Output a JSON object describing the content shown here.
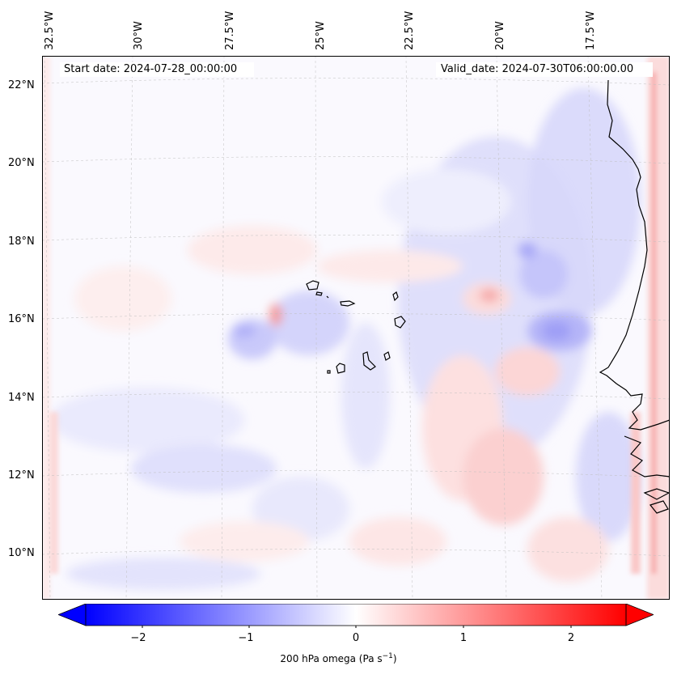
{
  "map": {
    "start_date_label": "Start date: 2024-07-28_00:00:00",
    "valid_date_label": "Valid_date: 2024-07-30T06:00:00.00",
    "lon_labels": [
      "32.5°W",
      "30°W",
      "27.5°W",
      "25°W",
      "22.5°W",
      "20°W",
      "17.5°W"
    ],
    "lat_labels": [
      "22°N",
      "20°N",
      "18°N",
      "16°N",
      "14°N",
      "12°N",
      "10°N"
    ]
  },
  "colorbar": {
    "title_prefix": "200 hPa omega (Pa s",
    "title_sup": "−1",
    "title_suffix": ")",
    "tick_labels": [
      "−2",
      "−1",
      "0",
      "1",
      "2"
    ],
    "range": [
      -2.7,
      2.7
    ],
    "cmap": "bwr",
    "colors": {
      "negative": "#0000ff",
      "zero": "#ffffff",
      "positive": "#ff0000"
    }
  }
}
